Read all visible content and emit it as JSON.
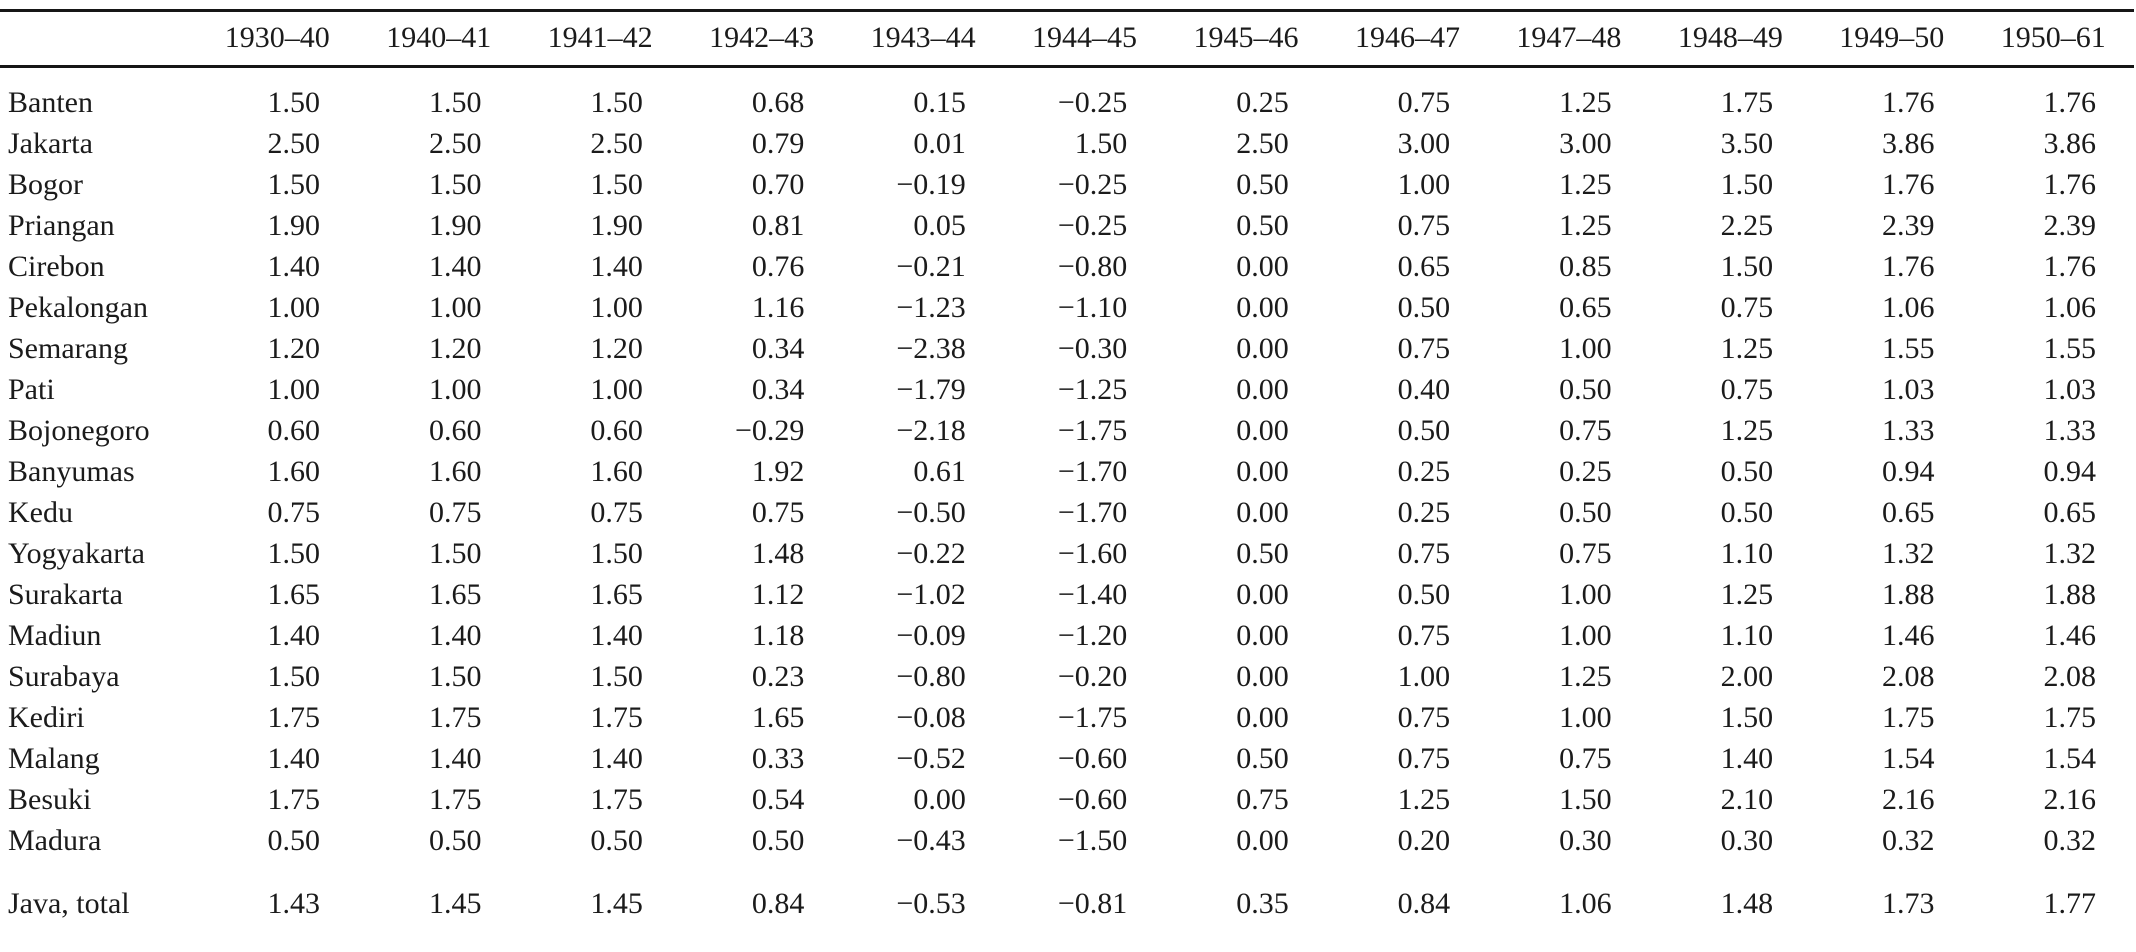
{
  "colors": {
    "background": "#ffffff",
    "text": "#1b1b1b",
    "rule": "#161616"
  },
  "table": {
    "corner_label": "",
    "columns": [
      "1930–40",
      "1940–41",
      "1941–42",
      "1942–43",
      "1943–44",
      "1944–45",
      "1945–46",
      "1946–47",
      "1947–48",
      "1948–49",
      "1949–50",
      "1950–61"
    ],
    "rows": [
      {
        "label": "Banten",
        "values": [
          "1.50",
          "1.50",
          "1.50",
          "0.68",
          "0.15",
          "−0.25",
          "0.25",
          "0.75",
          "1.25",
          "1.75",
          "1.76",
          "1.76"
        ]
      },
      {
        "label": "Jakarta",
        "values": [
          "2.50",
          "2.50",
          "2.50",
          "0.79",
          "0.01",
          "1.50",
          "2.50",
          "3.00",
          "3.00",
          "3.50",
          "3.86",
          "3.86"
        ]
      },
      {
        "label": "Bogor",
        "values": [
          "1.50",
          "1.50",
          "1.50",
          "0.70",
          "−0.19",
          "−0.25",
          "0.50",
          "1.00",
          "1.25",
          "1.50",
          "1.76",
          "1.76"
        ]
      },
      {
        "label": "Priangan",
        "values": [
          "1.90",
          "1.90",
          "1.90",
          "0.81",
          "0.05",
          "−0.25",
          "0.50",
          "0.75",
          "1.25",
          "2.25",
          "2.39",
          "2.39"
        ]
      },
      {
        "label": "Cirebon",
        "values": [
          "1.40",
          "1.40",
          "1.40",
          "0.76",
          "−0.21",
          "−0.80",
          "0.00",
          "0.65",
          "0.85",
          "1.50",
          "1.76",
          "1.76"
        ]
      },
      {
        "label": "Pekalongan",
        "values": [
          "1.00",
          "1.00",
          "1.00",
          "1.16",
          "−1.23",
          "−1.10",
          "0.00",
          "0.50",
          "0.65",
          "0.75",
          "1.06",
          "1.06"
        ]
      },
      {
        "label": "Semarang",
        "values": [
          "1.20",
          "1.20",
          "1.20",
          "0.34",
          "−2.38",
          "−0.30",
          "0.00",
          "0.75",
          "1.00",
          "1.25",
          "1.55",
          "1.55"
        ]
      },
      {
        "label": "Pati",
        "values": [
          "1.00",
          "1.00",
          "1.00",
          "0.34",
          "−1.79",
          "−1.25",
          "0.00",
          "0.40",
          "0.50",
          "0.75",
          "1.03",
          "1.03"
        ]
      },
      {
        "label": "Bojonegoro",
        "values": [
          "0.60",
          "0.60",
          "0.60",
          "−0.29",
          "−2.18",
          "−1.75",
          "0.00",
          "0.50",
          "0.75",
          "1.25",
          "1.33",
          "1.33"
        ]
      },
      {
        "label": "Banyumas",
        "values": [
          "1.60",
          "1.60",
          "1.60",
          "1.92",
          "0.61",
          "−1.70",
          "0.00",
          "0.25",
          "0.25",
          "0.50",
          "0.94",
          "0.94"
        ]
      },
      {
        "label": "Kedu",
        "values": [
          "0.75",
          "0.75",
          "0.75",
          "0.75",
          "−0.50",
          "−1.70",
          "0.00",
          "0.25",
          "0.50",
          "0.50",
          "0.65",
          "0.65"
        ]
      },
      {
        "label": "Yogyakarta",
        "values": [
          "1.50",
          "1.50",
          "1.50",
          "1.48",
          "−0.22",
          "−1.60",
          "0.50",
          "0.75",
          "0.75",
          "1.10",
          "1.32",
          "1.32"
        ]
      },
      {
        "label": "Surakarta",
        "values": [
          "1.65",
          "1.65",
          "1.65",
          "1.12",
          "−1.02",
          "−1.40",
          "0.00",
          "0.50",
          "1.00",
          "1.25",
          "1.88",
          "1.88"
        ]
      },
      {
        "label": "Madiun",
        "values": [
          "1.40",
          "1.40",
          "1.40",
          "1.18",
          "−0.09",
          "−1.20",
          "0.00",
          "0.75",
          "1.00",
          "1.10",
          "1.46",
          "1.46"
        ]
      },
      {
        "label": "Surabaya",
        "values": [
          "1.50",
          "1.50",
          "1.50",
          "0.23",
          "−0.80",
          "−0.20",
          "0.00",
          "1.00",
          "1.25",
          "2.00",
          "2.08",
          "2.08"
        ]
      },
      {
        "label": "Kediri",
        "values": [
          "1.75",
          "1.75",
          "1.75",
          "1.65",
          "−0.08",
          "−1.75",
          "0.00",
          "0.75",
          "1.00",
          "1.50",
          "1.75",
          "1.75"
        ]
      },
      {
        "label": "Malang",
        "values": [
          "1.40",
          "1.40",
          "1.40",
          "0.33",
          "−0.52",
          "−0.60",
          "0.50",
          "0.75",
          "0.75",
          "1.40",
          "1.54",
          "1.54"
        ]
      },
      {
        "label": "Besuki",
        "values": [
          "1.75",
          "1.75",
          "1.75",
          "0.54",
          "0.00",
          "−0.60",
          "0.75",
          "1.25",
          "1.50",
          "2.10",
          "2.16",
          "2.16"
        ]
      },
      {
        "label": "Madura",
        "values": [
          "0.50",
          "0.50",
          "0.50",
          "0.50",
          "−0.43",
          "−1.50",
          "0.00",
          "0.20",
          "0.30",
          "0.30",
          "0.32",
          "0.32"
        ]
      },
      {
        "label": "Java, total",
        "total": true,
        "values": [
          "1.43",
          "1.45",
          "1.45",
          "0.84",
          "−0.53",
          "−0.81",
          "0.35",
          "0.84",
          "1.06",
          "1.48",
          "1.73",
          "1.77"
        ]
      }
    ]
  }
}
